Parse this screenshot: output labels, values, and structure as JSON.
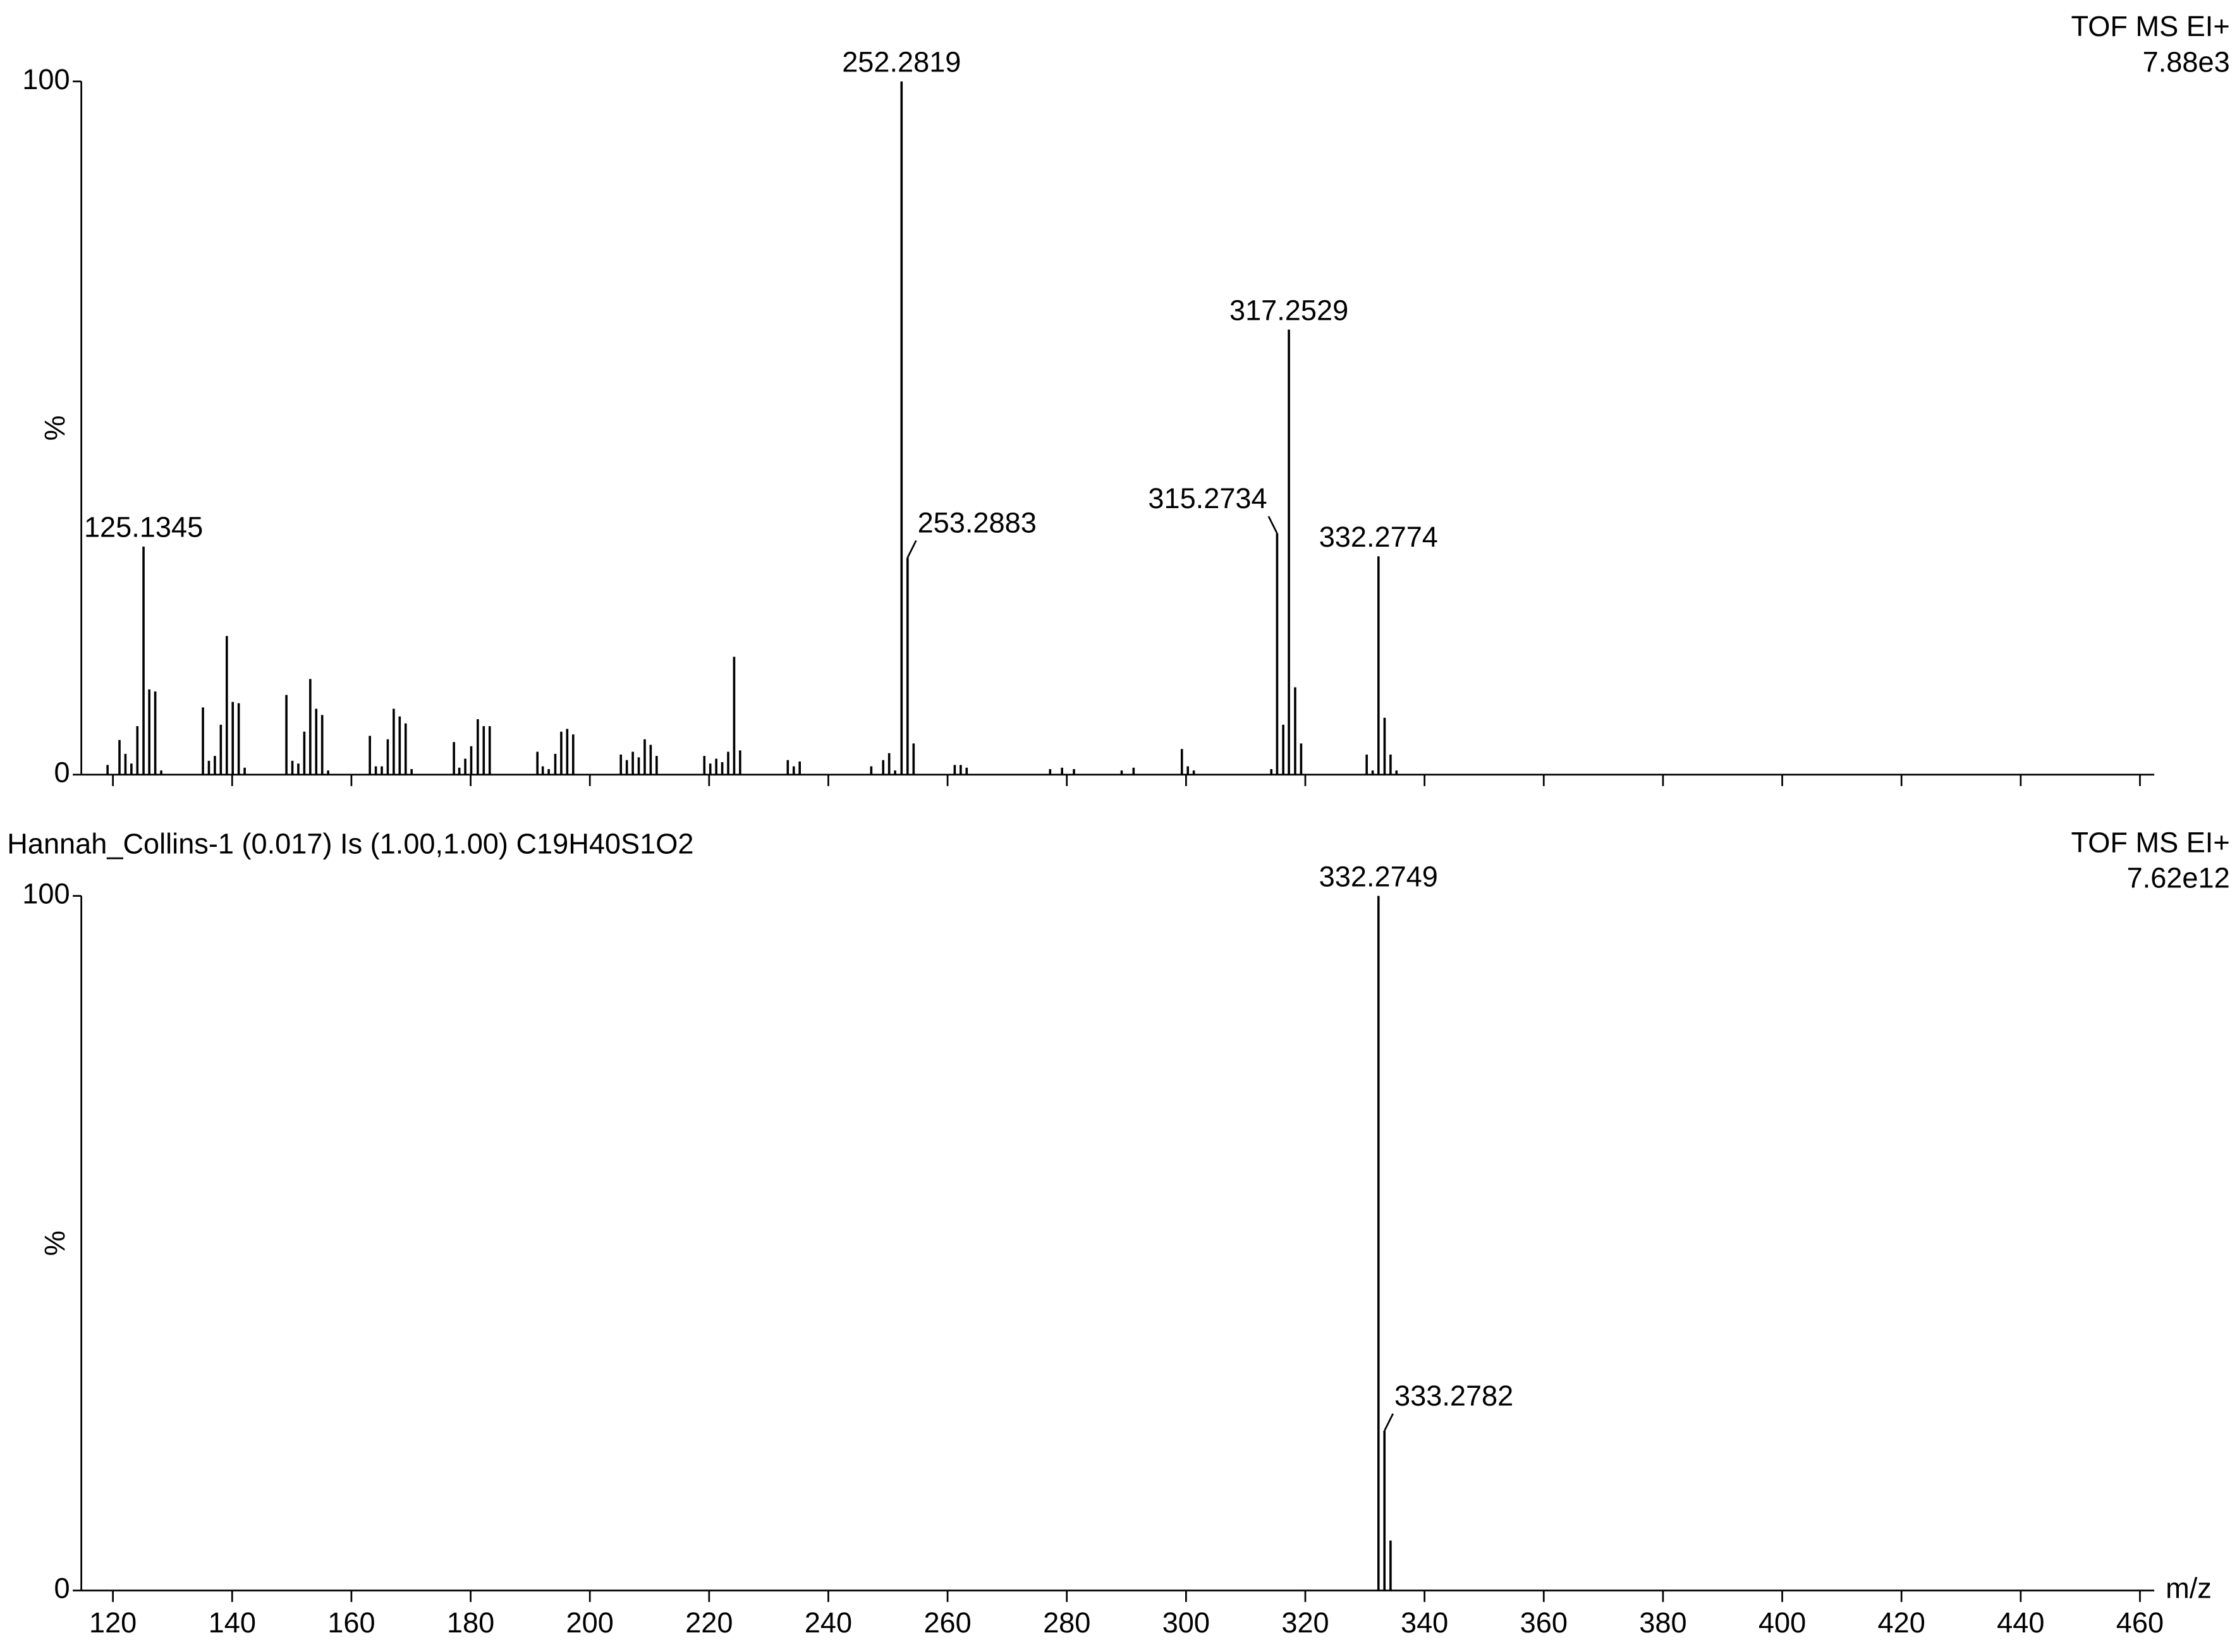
{
  "chart_data": [
    {
      "type": "bar",
      "instrument": "TOF MS EI+",
      "intensity": "7.88e3",
      "ylabel": "%",
      "xlim": [
        114.7,
        462.4
      ],
      "ylim": [
        0,
        100
      ],
      "yticks": [
        0,
        100
      ],
      "xticks": [
        120,
        140,
        160,
        180,
        200,
        220,
        240,
        260,
        280,
        300,
        320,
        340,
        360,
        380,
        400,
        420,
        440,
        460
      ],
      "xtick_labels": false,
      "color": "#000000",
      "x": [
        119.1,
        121.1,
        122.1,
        123.1,
        124.1,
        125.1345,
        126.1,
        127.1,
        128.1,
        135.1,
        136.1,
        137.1,
        138.1,
        139.1,
        140.1,
        141.1,
        142.1,
        149.1,
        150.1,
        151.1,
        152.1,
        153.1,
        154.1,
        155.1,
        156.1,
        163.1,
        164.1,
        165.1,
        166.1,
        167.1,
        168.1,
        169.1,
        170.1,
        177.2,
        178.1,
        179.1,
        180.1,
        181.2,
        182.2,
        183.2,
        191.2,
        192.1,
        193.1,
        194.2,
        195.2,
        196.2,
        197.2,
        205.2,
        206.2,
        207.2,
        208.2,
        209.2,
        210.2,
        211.2,
        219.2,
        220.2,
        221.2,
        222.2,
        223.2,
        224.2,
        225.2,
        233.2,
        234.2,
        235.2,
        247.2,
        249.2,
        250.2,
        251.2,
        252.2819,
        253.2883,
        254.3,
        261.2,
        262.2,
        263.2,
        277.2,
        279.2,
        281.2,
        289.2,
        291.2,
        299.3,
        300.3,
        301.3,
        314.3,
        315.2734,
        316.3,
        317.2529,
        318.3,
        319.3,
        330.3,
        331.3,
        332.2774,
        333.3,
        334.3,
        335.3
      ],
      "values": [
        1.4,
        5,
        3,
        1.6,
        7,
        32.9,
        12.3,
        12,
        0.6,
        9.7,
        2,
        2.7,
        7.2,
        20,
        10.5,
        10.3,
        1,
        11.5,
        2,
        1.6,
        6.2,
        13.8,
        9.5,
        8.6,
        0.6,
        5.6,
        1.2,
        1.2,
        5.1,
        9.5,
        8.4,
        7.4,
        0.8,
        4.7,
        1,
        2.3,
        4.1,
        8,
        7,
        7,
        3.3,
        1.2,
        0.8,
        3,
        6.2,
        6.6,
        5.8,
        2.9,
        2.1,
        3.3,
        2.5,
        5.1,
        4.3,
        2.7,
        2.7,
        1.6,
        2.3,
        1.8,
        3.3,
        17,
        3.5,
        2.1,
        1.2,
        1.9,
        1.2,
        2.1,
        3.1,
        0.6,
        100,
        31.3,
        4.5,
        1.4,
        1.4,
        1,
        0.8,
        1,
        0.8,
        0.6,
        1,
        3.7,
        1.2,
        0.6,
        0.8,
        34.8,
        7.2,
        64.2,
        12.6,
        4.5,
        2.9,
        0.6,
        31.5,
        8.2,
        2.9,
        0.6
      ],
      "point_labels": [
        null,
        null,
        null,
        null,
        null,
        "125.1345",
        null,
        null,
        null,
        null,
        null,
        null,
        null,
        null,
        null,
        null,
        null,
        null,
        null,
        null,
        null,
        null,
        null,
        null,
        null,
        null,
        null,
        null,
        null,
        null,
        null,
        null,
        null,
        null,
        null,
        null,
        null,
        null,
        null,
        null,
        null,
        null,
        null,
        null,
        null,
        null,
        null,
        null,
        null,
        null,
        null,
        null,
        null,
        null,
        null,
        null,
        null,
        null,
        null,
        null,
        null,
        null,
        null,
        null,
        null,
        null,
        null,
        null,
        "252.2819",
        "253.2883",
        null,
        null,
        null,
        null,
        null,
        null,
        null,
        null,
        null,
        null,
        null,
        null,
        null,
        "315.2734",
        null,
        "317.2529",
        null,
        null,
        null,
        null,
        "332.2774",
        null,
        null,
        null
      ]
    },
    {
      "type": "bar",
      "title": "Hannah_Collins-1  (0.017) Is (1.00,1.00) C19H40S1O2",
      "instrument": "TOF MS EI+",
      "intensity": "7.62e12",
      "ylabel": "%",
      "xlabel": "m/z",
      "xlim": [
        114.7,
        462.4
      ],
      "ylim": [
        0,
        100
      ],
      "yticks": [
        0,
        100
      ],
      "xticks": [
        120,
        140,
        160,
        180,
        200,
        220,
        240,
        260,
        280,
        300,
        320,
        340,
        360,
        380,
        400,
        420,
        440,
        460
      ],
      "xtick_labels": true,
      "color": "#000000",
      "x": [
        332.2749,
        333.2782,
        334.3
      ],
      "values": [
        100,
        23,
        7.2
      ],
      "point_labels": [
        "332.2749",
        "333.2782",
        null
      ]
    }
  ]
}
